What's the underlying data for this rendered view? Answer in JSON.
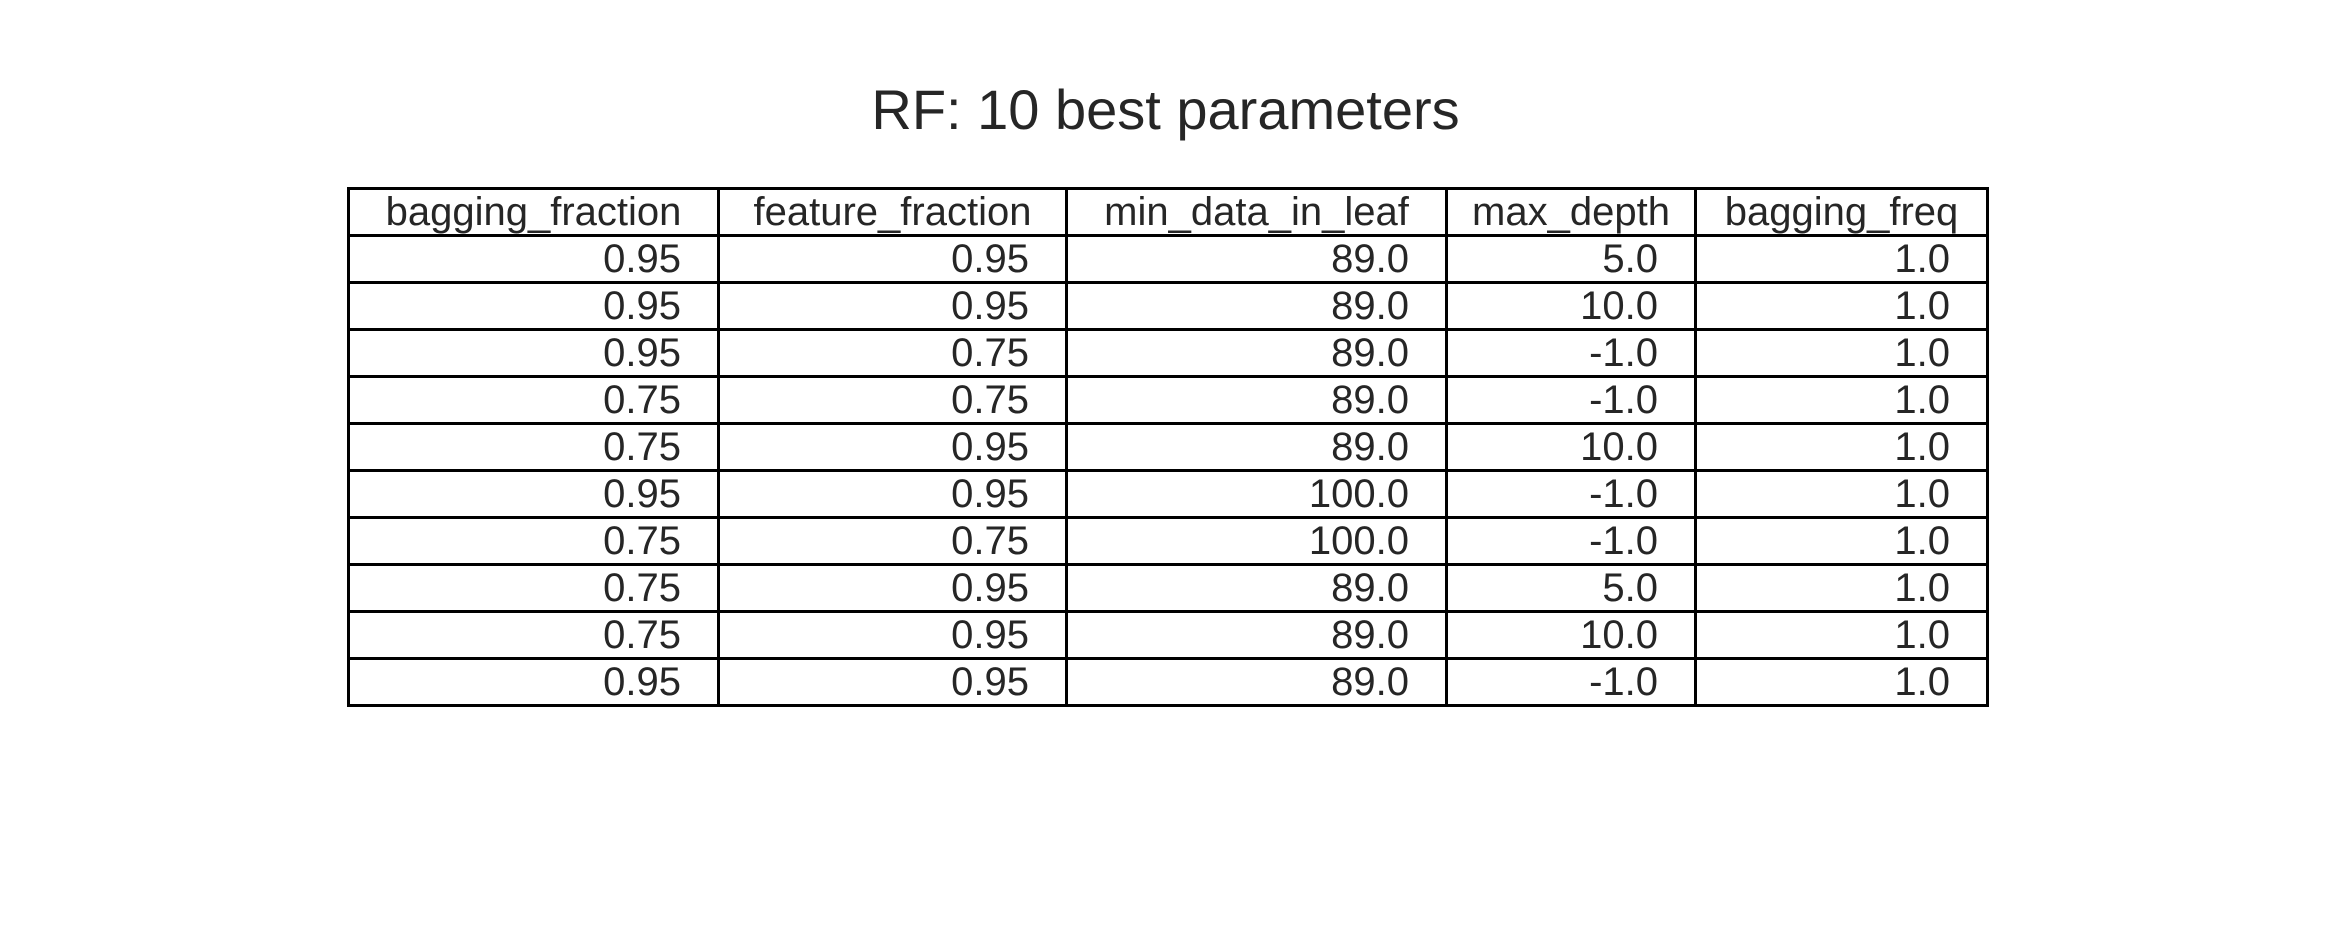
{
  "chart_data": {
    "type": "table",
    "title": "RF: 10 best parameters",
    "columns": [
      "bagging_fraction",
      "feature_fraction",
      "min_data_in_leaf",
      "max_depth",
      "bagging_freq"
    ],
    "rows": [
      [
        "0.95",
        "0.95",
        "89.0",
        "5.0",
        "1.0"
      ],
      [
        "0.95",
        "0.95",
        "89.0",
        "10.0",
        "1.0"
      ],
      [
        "0.95",
        "0.75",
        "89.0",
        "-1.0",
        "1.0"
      ],
      [
        "0.75",
        "0.75",
        "89.0",
        "-1.0",
        "1.0"
      ],
      [
        "0.75",
        "0.95",
        "89.0",
        "10.0",
        "1.0"
      ],
      [
        "0.95",
        "0.95",
        "100.0",
        "-1.0",
        "1.0"
      ],
      [
        "0.75",
        "0.75",
        "100.0",
        "-1.0",
        "1.0"
      ],
      [
        "0.75",
        "0.95",
        "89.0",
        "5.0",
        "1.0"
      ],
      [
        "0.75",
        "0.95",
        "89.0",
        "10.0",
        "1.0"
      ],
      [
        "0.95",
        "0.95",
        "89.0",
        "-1.0",
        "1.0"
      ]
    ]
  }
}
